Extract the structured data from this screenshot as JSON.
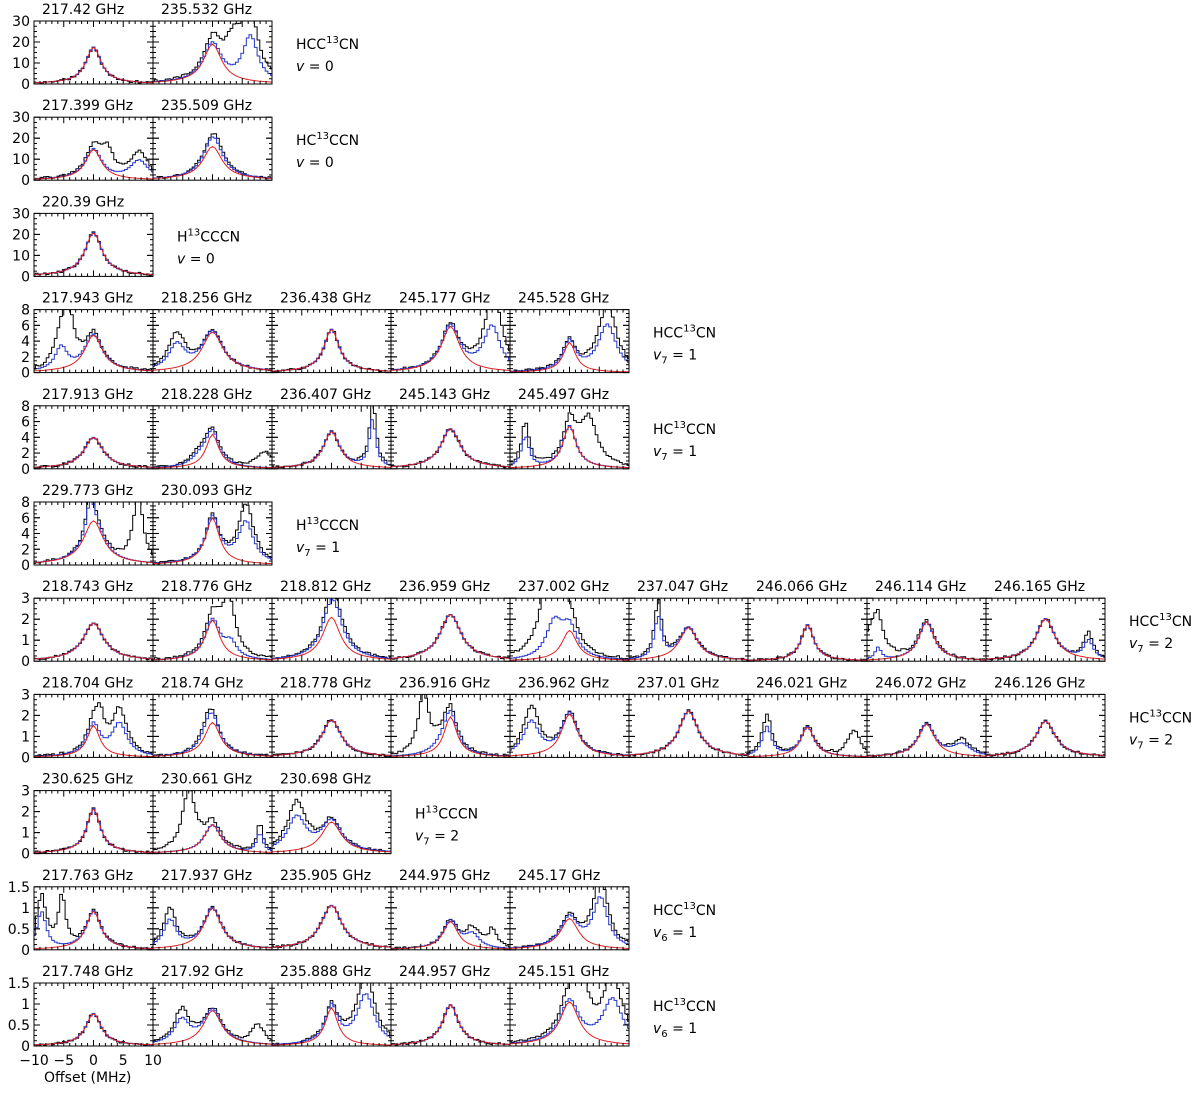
{
  "figure": {
    "xlabel": "Offset (MHz)",
    "x_ticks": [
      "−10",
      "−5",
      "0",
      "5",
      "10"
    ],
    "xlim": [
      -10,
      10
    ],
    "colors": {
      "observed": "#000000",
      "model_total": "#2233cc",
      "model_species": "#e02020"
    }
  },
  "chart_data": [
    {
      "type": "line",
      "species_main": "HCC",
      "species_iso": "13",
      "species_tail": "CN",
      "state_letter": "v",
      "state_sub": "",
      "state_value": "= 0",
      "ylim": [
        0,
        30
      ],
      "y_ticks": [
        "0",
        "10",
        "20",
        "30"
      ],
      "panels": [
        {
          "freq": "217.42 GHz"
        },
        {
          "freq": "235.532 GHz"
        }
      ]
    },
    {
      "type": "line",
      "species_main": "HC",
      "species_iso": "13",
      "species_tail": "CCN",
      "state_letter": "v",
      "state_sub": "",
      "state_value": "= 0",
      "ylim": [
        0,
        30
      ],
      "y_ticks": [
        "0",
        "10",
        "20",
        "30"
      ],
      "panels": [
        {
          "freq": "217.399 GHz"
        },
        {
          "freq": "235.509 GHz"
        }
      ]
    },
    {
      "type": "line",
      "species_main": "H",
      "species_iso": "13",
      "species_tail": "CCCN",
      "state_letter": "v",
      "state_sub": "",
      "state_value": "= 0",
      "ylim": [
        0,
        30
      ],
      "y_ticks": [
        "0",
        "10",
        "20",
        "30"
      ],
      "panels": [
        {
          "freq": "220.39 GHz"
        }
      ]
    },
    {
      "type": "line",
      "species_main": "HCC",
      "species_iso": "13",
      "species_tail": "CN",
      "state_letter": "v",
      "state_sub": "7",
      "state_value": "= 1",
      "ylim": [
        0,
        8
      ],
      "y_ticks": [
        "0",
        "2",
        "4",
        "6",
        "8"
      ],
      "panels": [
        {
          "freq": "217.943 GHz"
        },
        {
          "freq": "218.256 GHz"
        },
        {
          "freq": "236.438 GHz"
        },
        {
          "freq": "245.177 GHz"
        },
        {
          "freq": "245.528 GHz"
        }
      ]
    },
    {
      "type": "line",
      "species_main": "HC",
      "species_iso": "13",
      "species_tail": "CCN",
      "state_letter": "v",
      "state_sub": "7",
      "state_value": "= 1",
      "ylim": [
        0,
        8
      ],
      "y_ticks": [
        "0",
        "2",
        "4",
        "6",
        "8"
      ],
      "panels": [
        {
          "freq": "217.913 GHz"
        },
        {
          "freq": "218.228 GHz"
        },
        {
          "freq": "236.407 GHz"
        },
        {
          "freq": "245.143 GHz"
        },
        {
          "freq": "245.497 GHz"
        }
      ]
    },
    {
      "type": "line",
      "species_main": "H",
      "species_iso": "13",
      "species_tail": "CCCN",
      "state_letter": "v",
      "state_sub": "7",
      "state_value": "= 1",
      "ylim": [
        0,
        8
      ],
      "y_ticks": [
        "0",
        "2",
        "4",
        "6",
        "8"
      ],
      "panels": [
        {
          "freq": "229.773 GHz"
        },
        {
          "freq": "230.093 GHz"
        }
      ]
    },
    {
      "type": "line",
      "species_main": "HCC",
      "species_iso": "13",
      "species_tail": "CN",
      "state_letter": "v",
      "state_sub": "7",
      "state_value": "= 2",
      "ylim": [
        0,
        3
      ],
      "y_ticks": [
        "0",
        "1",
        "2",
        "3"
      ],
      "panels": [
        {
          "freq": "218.743 GHz"
        },
        {
          "freq": "218.776 GHz"
        },
        {
          "freq": "218.812 GHz"
        },
        {
          "freq": "236.959 GHz"
        },
        {
          "freq": "237.002 GHz"
        },
        {
          "freq": "237.047 GHz"
        },
        {
          "freq": "246.066 GHz"
        },
        {
          "freq": "246.114 GHz"
        },
        {
          "freq": "246.165 GHz"
        }
      ]
    },
    {
      "type": "line",
      "species_main": "HC",
      "species_iso": "13",
      "species_tail": "CCN",
      "state_letter": "v",
      "state_sub": "7",
      "state_value": "= 2",
      "ylim": [
        0,
        3
      ],
      "y_ticks": [
        "0",
        "1",
        "2",
        "3"
      ],
      "panels": [
        {
          "freq": "218.704 GHz"
        },
        {
          "freq": "218.74 GHz"
        },
        {
          "freq": "218.778 GHz"
        },
        {
          "freq": "236.916 GHz"
        },
        {
          "freq": "236.962 GHz"
        },
        {
          "freq": "237.01 GHz"
        },
        {
          "freq": "246.021 GHz"
        },
        {
          "freq": "246.072 GHz"
        },
        {
          "freq": "246.126 GHz"
        }
      ]
    },
    {
      "type": "line",
      "species_main": "H",
      "species_iso": "13",
      "species_tail": "CCCN",
      "state_letter": "v",
      "state_sub": "7",
      "state_value": "= 2",
      "ylim": [
        0,
        3
      ],
      "y_ticks": [
        "0",
        "1",
        "2",
        "3"
      ],
      "panels": [
        {
          "freq": "230.625 GHz"
        },
        {
          "freq": "230.661 GHz"
        },
        {
          "freq": "230.698 GHz"
        }
      ]
    },
    {
      "type": "line",
      "species_main": "HCC",
      "species_iso": "13",
      "species_tail": "CN",
      "state_letter": "v",
      "state_sub": "6",
      "state_value": "= 1",
      "ylim": [
        0,
        1.5
      ],
      "y_ticks": [
        "0",
        "0.5",
        "1",
        "1.5"
      ],
      "panels": [
        {
          "freq": "217.763 GHz"
        },
        {
          "freq": "217.937 GHz"
        },
        {
          "freq": "235.905 GHz"
        },
        {
          "freq": "244.975 GHz"
        },
        {
          "freq": "245.17 GHz"
        }
      ]
    },
    {
      "type": "line",
      "species_main": "HC",
      "species_iso": "13",
      "species_tail": "CCN",
      "state_letter": "v",
      "state_sub": "6",
      "state_value": "= 1",
      "ylim": [
        0,
        1.5
      ],
      "y_ticks": [
        "0",
        "0.5",
        "1",
        "1.5"
      ],
      "panels": [
        {
          "freq": "217.748 GHz"
        },
        {
          "freq": "217.92 GHz"
        },
        {
          "freq": "235.888 GHz"
        },
        {
          "freq": "244.957 GHz"
        },
        {
          "freq": "245.151 GHz"
        }
      ]
    }
  ]
}
